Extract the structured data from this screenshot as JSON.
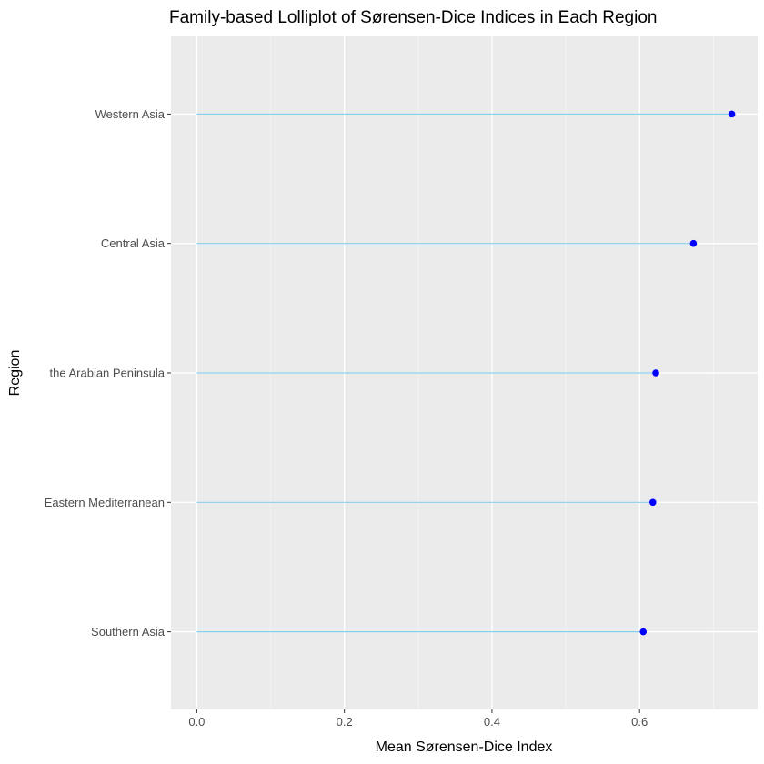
{
  "chart_data": {
    "type": "lollipop",
    "title": "Family-based Lolliplot of Sørensen-Dice Indices in Each Region",
    "xlabel": "Mean Sørensen-Dice Index",
    "ylabel": "Region",
    "xlim": [
      -0.035,
      0.76
    ],
    "xticks": [
      0.0,
      0.2,
      0.4,
      0.6
    ],
    "xtick_labels": [
      "0.0",
      "0.2",
      "0.4",
      "0.6"
    ],
    "categories": [
      "Western Asia",
      "Central Asia",
      "the Arabian Peninsula",
      "Eastern Mediterranean",
      "Southern Asia"
    ],
    "values": [
      0.725,
      0.673,
      0.622,
      0.618,
      0.605
    ],
    "grid": true,
    "legend": "none",
    "colors": {
      "panel_background": "#ebebeb",
      "grid_major": "#ffffff",
      "grid_minor": "#f4f4f4",
      "stem": "#87ceeb",
      "point": "#0000ff",
      "tick": "#333333"
    }
  }
}
